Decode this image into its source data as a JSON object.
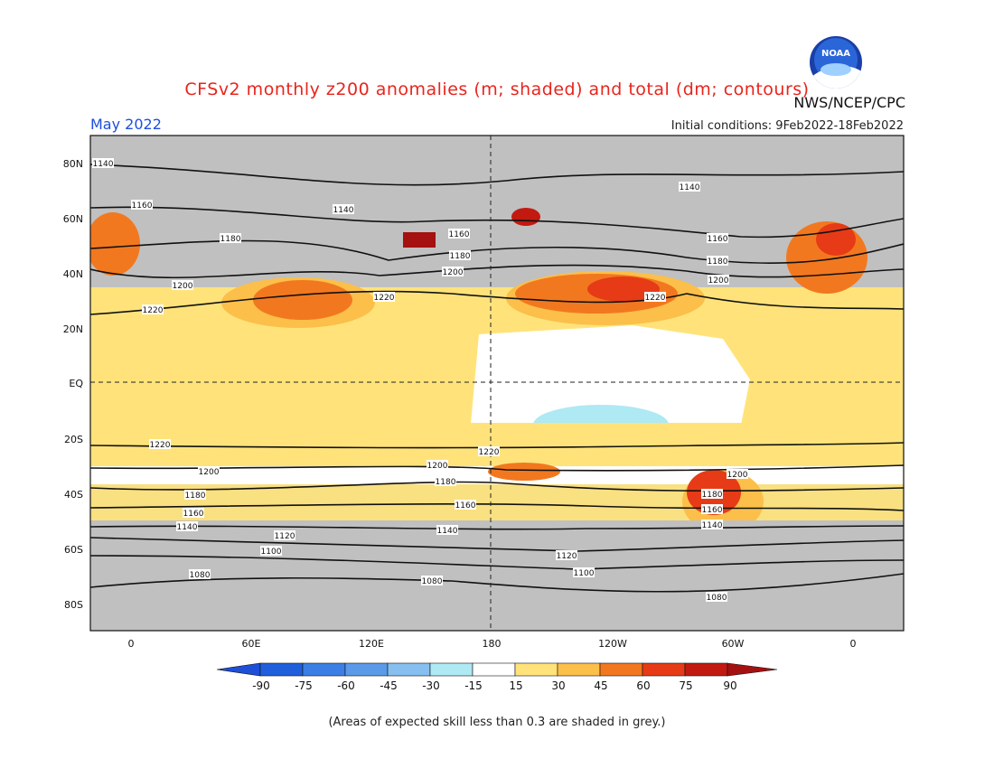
{
  "title": "CFSv2 monthly z200 anomalies (m; shaded) and total (dm; contours)",
  "month": "May 2022",
  "agency": "NWS/NCEP/CPC",
  "initial_conditions": "Initial conditions: 9Feb2022-18Feb2022",
  "note": "(Areas of expected skill less than 0.3 are shaded in grey.)",
  "logo": {
    "icon": "noaa-logo-icon",
    "text": "NOAA"
  },
  "map_data": {
    "lat_labels": [
      "80N",
      "60N",
      "40N",
      "20N",
      "EQ",
      "20S",
      "40S",
      "60S",
      "80S"
    ],
    "lon_labels": [
      "0",
      "60E",
      "120E",
      "180",
      "120W",
      "60W",
      "0"
    ],
    "contour_labels": [
      "1140",
      "1160",
      "1180",
      "1200",
      "1220",
      "1220",
      "1200",
      "1180",
      "1160",
      "1140",
      "1120",
      "1100",
      "1080",
      "1140",
      "1140",
      "1160",
      "1160",
      "1180",
      "1180",
      "1200",
      "1200",
      "1220",
      "1220",
      "1220",
      "1200",
      "1180",
      "1160",
      "1140",
      "1120",
      "1100",
      "1080",
      "1200",
      "1180",
      "1160",
      "1140",
      "1080"
    ]
  },
  "colorbar": {
    "labels": [
      "-90",
      "-75",
      "-60",
      "-45",
      "-30",
      "-15",
      "15",
      "30",
      "45",
      "60",
      "75",
      "90"
    ],
    "colors": [
      "#1f5fdc",
      "#3b7fe6",
      "#5a9ae8",
      "#86bff0",
      "#aee9f4",
      "#ffffff",
      "#ffe37a",
      "#fbbf4a",
      "#f2781f",
      "#e63b16",
      "#c21a10"
    ],
    "low_end_color": "#1d4fd8",
    "high_end_color": "#a51010"
  },
  "colors": {
    "grey_skill": "#c0c0c0",
    "light_yellow": "#ffe37a",
    "orange": "#fbbf4a"
  }
}
